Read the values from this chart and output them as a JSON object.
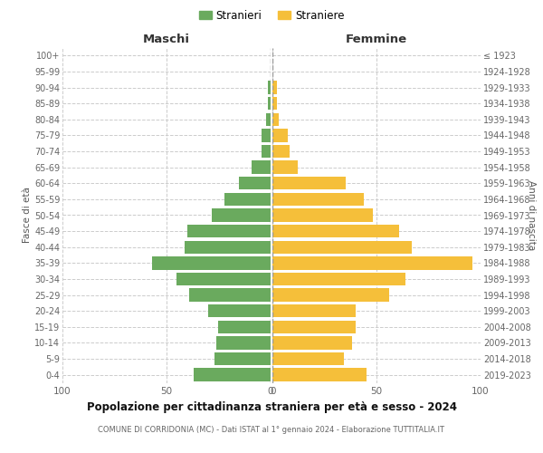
{
  "age_groups": [
    "100+",
    "95-99",
    "90-94",
    "85-89",
    "80-84",
    "75-79",
    "70-74",
    "65-69",
    "60-64",
    "55-59",
    "50-54",
    "45-49",
    "40-44",
    "35-39",
    "30-34",
    "25-29",
    "20-24",
    "15-19",
    "10-14",
    "5-9",
    "0-4"
  ],
  "birth_years": [
    "≤ 1923",
    "1924-1928",
    "1929-1933",
    "1934-1938",
    "1939-1943",
    "1944-1948",
    "1949-1953",
    "1954-1958",
    "1959-1963",
    "1964-1968",
    "1969-1973",
    "1974-1978",
    "1979-1983",
    "1984-1988",
    "1989-1993",
    "1994-1998",
    "1999-2003",
    "2004-2008",
    "2009-2013",
    "2014-2018",
    "2019-2023"
  ],
  "maschi": [
    0,
    0,
    1,
    1,
    2,
    4,
    4,
    9,
    15,
    22,
    28,
    40,
    41,
    57,
    45,
    39,
    30,
    25,
    26,
    27,
    37
  ],
  "femmine": [
    0,
    0,
    2,
    2,
    3,
    7,
    8,
    12,
    35,
    44,
    48,
    61,
    67,
    96,
    64,
    56,
    40,
    40,
    38,
    34,
    45
  ],
  "male_color": "#6aaa5e",
  "female_color": "#f5bf3a",
  "title": "Popolazione per cittadinanza straniera per età e sesso - 2024",
  "subtitle": "COMUNE DI CORRIDONIA (MC) - Dati ISTAT al 1° gennaio 2024 - Elaborazione TUTTITALIA.IT",
  "header_left": "Maschi",
  "header_right": "Femmine",
  "ylabel_left": "Fasce di età",
  "ylabel_right": "Anni di nascita",
  "legend_male": "Stranieri",
  "legend_female": "Straniere",
  "xlim": 100,
  "background_color": "#ffffff",
  "grid_color": "#cccccc"
}
